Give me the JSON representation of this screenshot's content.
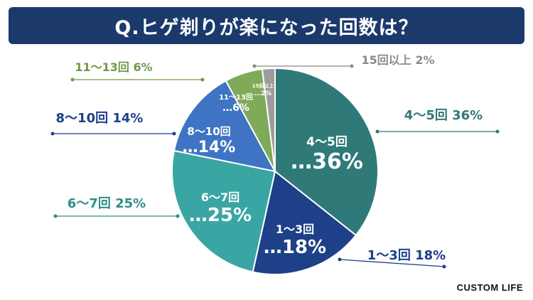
{
  "title": "Q.ヒゲ剃りが楽になった回数は？",
  "brand": "CUSTOM LIFE",
  "chart_data": {
    "type": "pie",
    "categories": [
      "4～5回",
      "1～3回",
      "6～7回",
      "8～10回",
      "11～13回",
      "15回以上"
    ],
    "values": [
      36,
      18,
      25,
      14,
      6,
      2
    ],
    "unit": "%",
    "inner_labels": [
      "4～5回\n…36%",
      "1～3回\n…18%",
      "6～7回\n…25%",
      "8～10回\n…14%",
      "11～13回\n…6%",
      "15回以上\n…2%"
    ],
    "outer_labels": [
      "4～5回 36%",
      "1～3回 18%",
      "6～7回 25%",
      "8～10回 14%",
      "11～13回 6%",
      "15回以上 2%"
    ],
    "colors": [
      "#2f7a78",
      "#1e4088",
      "#3aa6a3",
      "#3f74c4",
      "#7faa58",
      "#9c9c9c"
    ],
    "label_colors": [
      "#2f7a78",
      "#1e4088",
      "#2f8d8a",
      "#1e4088",
      "#6f9a48",
      "#8a8a8a"
    ]
  }
}
